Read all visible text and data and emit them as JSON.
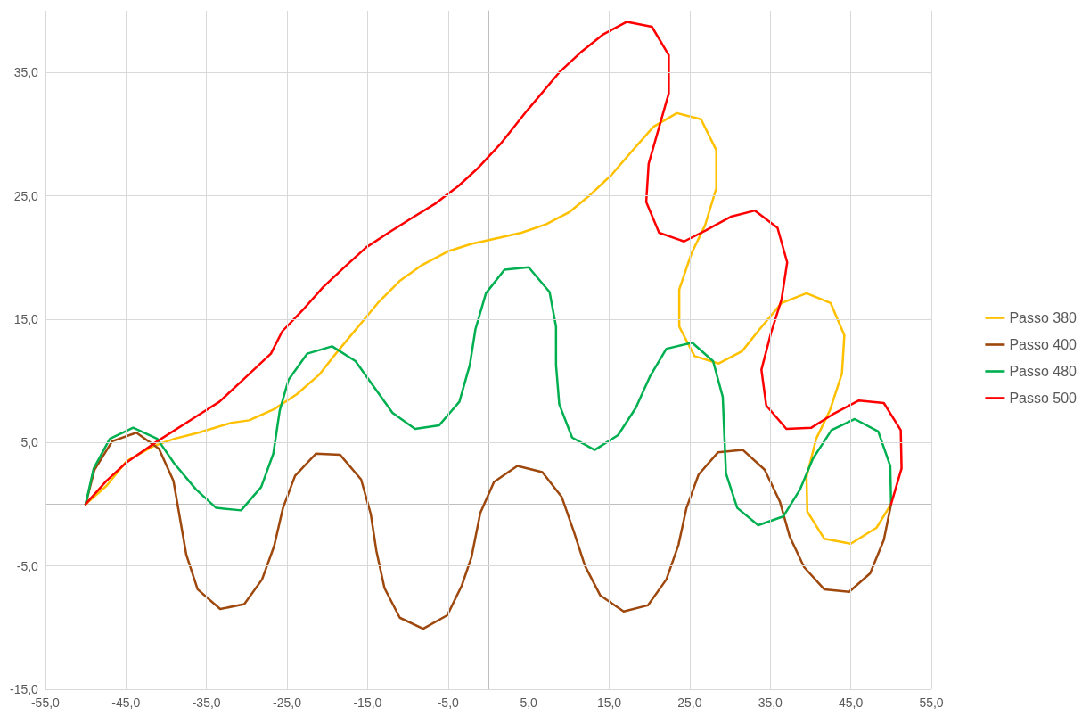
{
  "chart_data": {
    "type": "line",
    "legend": "right",
    "grid": true,
    "marker": "none",
    "line_style": "solid",
    "xlim": [
      -55,
      55
    ],
    "xticks": [
      {
        "value": -55,
        "label": "-55,0"
      },
      {
        "value": -45,
        "label": "-45,0"
      },
      {
        "value": -35,
        "label": "-35,0"
      },
      {
        "value": -25,
        "label": "-25,0"
      },
      {
        "value": -15,
        "label": "-15,0"
      },
      {
        "value": -5,
        "label": "-5,0"
      },
      {
        "value": 5,
        "label": "5,0"
      },
      {
        "value": 15,
        "label": "15,0"
      },
      {
        "value": 25,
        "label": "25,0"
      },
      {
        "value": 35,
        "label": "35,0"
      },
      {
        "value": 45,
        "label": "45,0"
      },
      {
        "value": 55,
        "label": "55,0"
      }
    ],
    "ylim": [
      -15,
      40
    ],
    "yticks": [
      {
        "value": -15,
        "label": "-15,0"
      },
      {
        "value": -5,
        "label": "-5,0"
      },
      {
        "value": 5,
        "label": "5,0"
      },
      {
        "value": 15,
        "label": "15,0"
      },
      {
        "value": 25,
        "label": "25,0"
      },
      {
        "value": 35,
        "label": "35,0"
      }
    ],
    "series": [
      {
        "name": "Passo 380",
        "color": "#ffc000",
        "x": [
          -50,
          -47.4,
          -44.9,
          -41.6,
          -39,
          -36,
          -31.9,
          -29.7,
          -26.6,
          -23.8,
          -21,
          -18.7,
          -15,
          -13.6,
          -11,
          -8.2,
          -5,
          -2.1,
          -0.7,
          4.1,
          7.2,
          10.1,
          12.7,
          15.3,
          17.8,
          20.5,
          23.4,
          26.4,
          28.3,
          28.3,
          26.9,
          25.2,
          23.7,
          23.7,
          25.6,
          28.6,
          31.5,
          33.7,
          36.4,
          39.5,
          42.5,
          44.2,
          43.9,
          42.4,
          40.7,
          39.5,
          39.6,
          41.7,
          45,
          48.2,
          50
        ],
        "values": [
          0,
          1.5,
          3.5,
          4.7,
          5.3,
          5.8,
          6.6,
          6.8,
          7.7,
          8.9,
          10.5,
          12.4,
          15.3,
          16.4,
          18.1,
          19.4,
          20.5,
          21.1,
          21.3,
          22,
          22.7,
          23.7,
          25.1,
          26.7,
          28.6,
          30.6,
          31.7,
          31.2,
          28.7,
          25.6,
          22.6,
          20.3,
          17.4,
          14.4,
          12,
          11.4,
          12.4,
          14.2,
          16.3,
          17.1,
          16.3,
          13.7,
          10.6,
          7.6,
          5.3,
          2.2,
          -0.6,
          -2.8,
          -3.2,
          -1.9,
          0
        ]
      },
      {
        "name": "Passo 400",
        "color": "#9e480e",
        "x": [
          -50,
          -48.9,
          -46.7,
          -43.7,
          -40.9,
          -39.1,
          -37.5,
          -36.1,
          -33.3,
          -30.3,
          -28.1,
          -26.6,
          -25.5,
          -24,
          -21.4,
          -18.4,
          -15.8,
          -14.6,
          -13.9,
          -12.9,
          -11,
          -8.1,
          -5.1,
          -3.3,
          -2.1,
          -1,
          0.7,
          3.6,
          6.7,
          9.1,
          10.6,
          12,
          13.9,
          16.8,
          19.8,
          22.1,
          23.6,
          24.6,
          26.1,
          28.5,
          31.6,
          34.3,
          36.2,
          37.4,
          39.2,
          41.7,
          44.8,
          47.4,
          49.1,
          50
        ],
        "values": [
          0,
          2.8,
          5.1,
          5.8,
          4.5,
          1.9,
          -4.1,
          -6.9,
          -8.5,
          -8.1,
          -6.1,
          -3.4,
          -0.3,
          2.3,
          4.1,
          4,
          2,
          -0.8,
          -3.8,
          -6.8,
          -9.2,
          -10.1,
          -9,
          -6.6,
          -4.3,
          -0.7,
          1.8,
          3.1,
          2.6,
          0.6,
          -2.2,
          -5,
          -7.4,
          -8.7,
          -8.2,
          -6.1,
          -3.3,
          -0.3,
          2.4,
          4.2,
          4.4,
          2.8,
          0.2,
          -2.6,
          -5.1,
          -6.9,
          -7.1,
          -5.6,
          -2.9,
          0
        ]
      },
      {
        "name": "Passo 480",
        "color": "#00b050",
        "x": [
          -50,
          -49,
          -47,
          -44.1,
          -41.1,
          -39,
          -36.3,
          -33.8,
          -30.7,
          -28.2,
          -26.7,
          -25.9,
          -24.8,
          -22.5,
          -19.4,
          -16.5,
          -11.9,
          -9.1,
          -6.1,
          -3.6,
          -2.3,
          -1.6,
          -0.3,
          2,
          5,
          7.6,
          8.4,
          8.4,
          8.8,
          10.4,
          13.2,
          16.1,
          18.3,
          20.1,
          22.1,
          25.3,
          27.9,
          29.1,
          29.5,
          30.9,
          33.5,
          36.6,
          38.7,
          40.3,
          42.6,
          45.5,
          48.4,
          49.9,
          50
        ],
        "values": [
          0,
          2.9,
          5.3,
          6.2,
          5.3,
          3.3,
          1.2,
          -0.3,
          -0.5,
          1.4,
          4.1,
          7.6,
          10.1,
          12.2,
          12.8,
          11.6,
          7.4,
          6.1,
          6.4,
          8.3,
          11.3,
          14.2,
          17.1,
          19,
          19.2,
          17.2,
          14.4,
          11.3,
          8.1,
          5.4,
          4.4,
          5.6,
          7.8,
          10.4,
          12.6,
          13.1,
          11.6,
          8.7,
          2.5,
          -0.3,
          -1.7,
          -1,
          1.2,
          3.7,
          6,
          6.9,
          5.9,
          3.1,
          0
        ]
      },
      {
        "name": "Passo 500",
        "color": "#ff0000",
        "x": [
          -50,
          -47.4,
          -44.9,
          -41.1,
          -36.3,
          -33.4,
          -30.6,
          -27,
          -25.6,
          -23.1,
          -20.5,
          -17.9,
          -15.2,
          -12.4,
          -9.5,
          -6.5,
          -3.7,
          -1.2,
          1.5,
          4.8,
          8.8,
          11.6,
          14.3,
          17.2,
          20.3,
          22.4,
          22.4,
          19.9,
          19.6,
          21.2,
          24.3,
          27,
          30.1,
          33.1,
          35.9,
          37.1,
          36.4,
          35.1,
          33.9,
          34.5,
          37,
          40.1,
          42.8,
          46,
          49.1,
          51.2,
          51.3,
          50
        ],
        "values": [
          0,
          1.9,
          3.4,
          5.1,
          7.1,
          8.3,
          10,
          12.2,
          14,
          15.7,
          17.6,
          19.2,
          20.8,
          22,
          23.2,
          24.4,
          25.8,
          27.3,
          29.2,
          31.9,
          35,
          36.7,
          38.1,
          39.1,
          38.7,
          36.4,
          33.3,
          27.6,
          24.5,
          22,
          21.3,
          22.2,
          23.3,
          23.8,
          22.4,
          19.6,
          16.6,
          13.9,
          10.9,
          8,
          6.1,
          6.2,
          7.3,
          8.4,
          8.2,
          6,
          2.9,
          0
        ]
      }
    ]
  }
}
